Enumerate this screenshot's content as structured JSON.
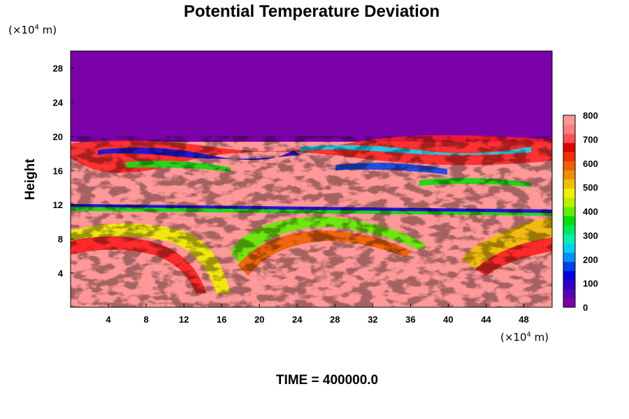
{
  "chart_data": {
    "type": "heatmap",
    "title": "Potential Temperature Deviation",
    "ylabel": "Height",
    "x_unit_base": "(×10",
    "x_unit_exp": "4",
    "x_unit_tail": " m)",
    "y_unit_base": "(×10",
    "y_unit_exp": "4",
    "y_unit_tail": " m)",
    "footer": "TIME = 400000.0",
    "xlim": [
      0,
      51
    ],
    "ylim": [
      0,
      30
    ],
    "x_ticks": [
      4,
      8,
      12,
      16,
      20,
      24,
      28,
      32,
      36,
      40,
      44,
      48
    ],
    "y_ticks": [
      4,
      8,
      12,
      16,
      20,
      24,
      28
    ],
    "colorbar": {
      "ticks": [
        0,
        100,
        200,
        300,
        400,
        500,
        600,
        700,
        800
      ],
      "range": [
        0,
        800
      ],
      "colors": [
        "#7a00a8",
        "#5a00b4",
        "#2f00c8",
        "#0000dc",
        "#0040f0",
        "#0090ff",
        "#00d0f0",
        "#00f0b0",
        "#00e860",
        "#00e000",
        "#60f000",
        "#b8f000",
        "#f0f000",
        "#f0c000",
        "#f09000",
        "#f06000",
        "#f03000",
        "#e00000",
        "#ff5050",
        "#ff8080",
        "#ff9898"
      ]
    },
    "regions": {
      "upper_value": 0,
      "lower_value": 780,
      "boundary_height": 19.6
    }
  }
}
